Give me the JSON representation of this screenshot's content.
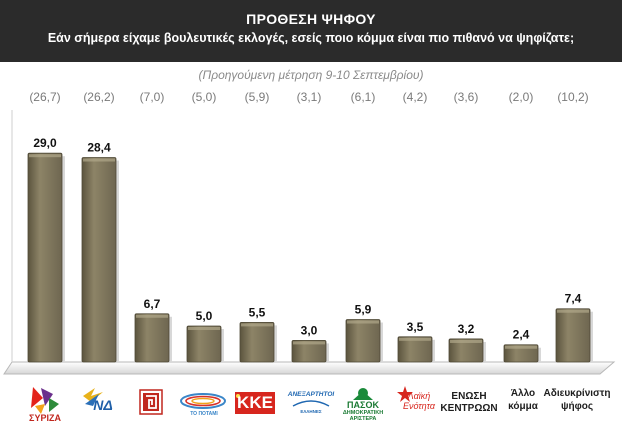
{
  "header": {
    "title": "ΠΡΟΘΕΣΗ ΨΗΦΟΥ",
    "subtitle": "Εάν σήμερα είχαμε βουλευτικές εκλογές, εσείς ποιο κόμμα είναι πιο πιθανό να ψηφίζατε;",
    "previous_note": "(Προηγούμενη μέτρηση 9-10 Σεπτεμβρίου)"
  },
  "colors": {
    "header_bg": "#2b2b2b",
    "bar_main": "#7f7659",
    "bar_light": "#a59d7f",
    "bar_dark": "#4f4936"
  },
  "chart_data": {
    "type": "bar",
    "categories": [
      "ΣΥΡΙΖΑ",
      "ΝΔ",
      "Χρυσή Αυγή",
      "ΤΟ ΠΟΤΑΜΙ",
      "ΚΚΕ",
      "ΑΝΕΞΑΡΤΗΤΟΙ ΕΛΛΗΝΕΣ",
      "ΠΑΣΟΚ ΔΗΜΟΚΡΑΤΙΚΗ ΑΡΙΣΤΕΡΑ",
      "Λαϊκή Ενότητα",
      "ΕΝΩΣΗ ΚΕΝΤΡΩΩΝ",
      "Άλλο κόμμα",
      "Αδιευκρίνιστη ψήφος"
    ],
    "values": [
      29.0,
      28.4,
      6.7,
      5.0,
      5.5,
      3.0,
      5.9,
      3.5,
      3.2,
      2.4,
      7.4
    ],
    "value_labels": [
      "29,0",
      "28,4",
      "6,7",
      "5,0",
      "5,5",
      "3,0",
      "5,9",
      "3,5",
      "3,2",
      "2,4",
      "7,4"
    ],
    "previous_values": [
      26.7,
      26.2,
      7.0,
      5.0,
      5.9,
      3.1,
      6.1,
      4.2,
      3.6,
      2.0,
      10.2
    ],
    "previous_labels": [
      "(26,7)",
      "(26,2)",
      "(7,0)",
      "(5,0)",
      "(5,9)",
      "(3,1)",
      "(6,1)",
      "(4,2)",
      "(3,6)",
      "(2,0)",
      "(10,2)"
    ],
    "ylim": [
      0,
      30
    ],
    "grid": false,
    "legend": "none"
  },
  "logos": {
    "syriza": "ΣΥΡΙΖΑ",
    "nd": "ΝΔ",
    "potami": "ΤΟ ΠΟΤΑΜΙ",
    "kke": "ΚΚΕ",
    "anel": "ΑΝΕΞΑΡΤΗΤΟΙ",
    "anel_sub": "ΕΛΛΗΝΕΣ",
    "pasok": "ΠΑΣΟΚ",
    "pasok_sub1": "ΔΗΜΟΚΡΑΤΙΚΗ",
    "pasok_sub2": "ΑΡΙΣΤΕΡΑ",
    "le_line1": "Λαϊκή",
    "le_line2": "Ενότητα",
    "ek_line1": "ΕΝΩΣΗ",
    "ek_line2": "ΚΕΝΤΡΩΩΝ",
    "other_line1": "Άλλο",
    "other_line2": "κόμμα",
    "undecided_line1": "Αδιευκρίνιστη",
    "undecided_line2": "ψήφος"
  }
}
